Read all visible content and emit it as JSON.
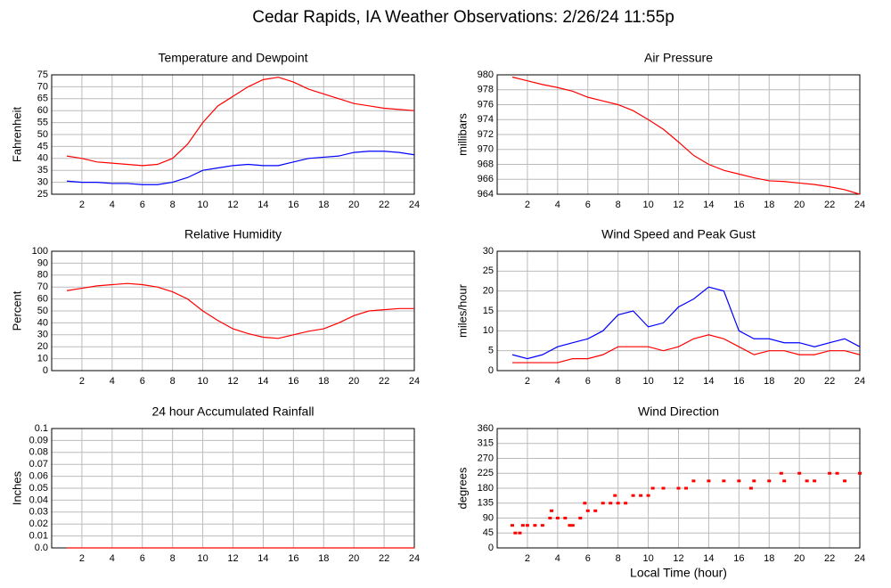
{
  "title": "Cedar Rapids, IA Weather Observations: 2/26/24 11:55p",
  "chart_data": [
    {
      "type": "line",
      "title": "Temperature and Dewpoint",
      "y_label": "Fahrenheit",
      "x": [
        1,
        2,
        3,
        4,
        5,
        6,
        7,
        8,
        9,
        10,
        11,
        12,
        13,
        14,
        15,
        16,
        17,
        18,
        19,
        20,
        21,
        22,
        23,
        24
      ],
      "series": [
        {
          "color": "#ff0000",
          "values": [
            41,
            40,
            38.5,
            38,
            37.5,
            37,
            37.5,
            40,
            46,
            55,
            62,
            66,
            70,
            73,
            74,
            72,
            69,
            67,
            65,
            63,
            62,
            61,
            60.5,
            60
          ]
        },
        {
          "color": "#0000ff",
          "values": [
            30.5,
            30,
            30,
            29.5,
            29.5,
            29,
            29,
            30,
            32,
            35,
            36,
            37,
            37.5,
            37,
            37,
            38.5,
            40,
            40.5,
            41,
            42.5,
            43,
            43,
            42.5,
            41.5
          ]
        }
      ],
      "xlim": [
        0,
        24
      ],
      "xticks": [
        2,
        4,
        6,
        8,
        10,
        12,
        14,
        16,
        18,
        20,
        22,
        24
      ],
      "ylim": [
        25,
        75
      ],
      "yticks": [
        25,
        30,
        35,
        40,
        45,
        50,
        55,
        60,
        65,
        70,
        75
      ],
      "grid": true
    },
    {
      "type": "line",
      "title": "Air Pressure",
      "y_label": "millibars",
      "x": [
        1,
        2,
        3,
        4,
        5,
        6,
        7,
        8,
        9,
        10,
        11,
        12,
        13,
        14,
        15,
        16,
        17,
        18,
        19,
        20,
        21,
        22,
        23,
        24
      ],
      "series": [
        {
          "color": "#ff0000",
          "values": [
            979.7,
            979.2,
            978.7,
            978.3,
            977.8,
            977,
            976.5,
            976,
            975.2,
            974,
            972.7,
            971,
            969.2,
            968,
            967.2,
            966.7,
            966.2,
            965.8,
            965.7,
            965.5,
            965.3,
            965,
            964.6,
            964
          ]
        }
      ],
      "xlim": [
        0,
        24
      ],
      "xticks": [
        2,
        4,
        6,
        8,
        10,
        12,
        14,
        16,
        18,
        20,
        22,
        24
      ],
      "ylim": [
        964,
        980
      ],
      "yticks": [
        964,
        966,
        968,
        970,
        972,
        974,
        976,
        978,
        980
      ],
      "grid": true
    },
    {
      "type": "line",
      "title": "Relative Humidity",
      "y_label": "Percent",
      "x": [
        1,
        2,
        3,
        4,
        5,
        6,
        7,
        8,
        9,
        10,
        11,
        12,
        13,
        14,
        15,
        16,
        17,
        18,
        19,
        20,
        21,
        22,
        23,
        24
      ],
      "series": [
        {
          "color": "#ff0000",
          "values": [
            67,
            69,
            71,
            72,
            73,
            72,
            70,
            66,
            60,
            50,
            42,
            35,
            31,
            28,
            27,
            30,
            33,
            35,
            40,
            46,
            50,
            51,
            52,
            52
          ]
        }
      ],
      "xlim": [
        0,
        24
      ],
      "xticks": [
        2,
        4,
        6,
        8,
        10,
        12,
        14,
        16,
        18,
        20,
        22,
        24
      ],
      "ylim": [
        0,
        100
      ],
      "yticks": [
        0,
        10,
        20,
        30,
        40,
        50,
        60,
        70,
        80,
        90,
        100
      ],
      "grid": true
    },
    {
      "type": "line",
      "title": "Wind Speed and Peak Gust",
      "y_label": "miles/hour",
      "x": [
        1,
        2,
        3,
        4,
        5,
        6,
        7,
        8,
        9,
        10,
        11,
        12,
        13,
        14,
        15,
        16,
        17,
        18,
        19,
        20,
        21,
        22,
        23,
        24
      ],
      "series": [
        {
          "color": "#ff0000",
          "values": [
            2,
            2,
            2,
            2,
            3,
            3,
            4,
            6,
            6,
            6,
            5,
            6,
            8,
            9,
            8,
            6,
            4,
            5,
            5,
            4,
            4,
            5,
            5,
            4
          ]
        },
        {
          "color": "#0000ff",
          "values": [
            4,
            3,
            4,
            6,
            7,
            8,
            10,
            14,
            15,
            11,
            12,
            16,
            18,
            21,
            20,
            10,
            8,
            8,
            7,
            7,
            6,
            7,
            8,
            6
          ]
        }
      ],
      "xlim": [
        0,
        24
      ],
      "xticks": [
        2,
        4,
        6,
        8,
        10,
        12,
        14,
        16,
        18,
        20,
        22,
        24
      ],
      "ylim": [
        0,
        30
      ],
      "yticks": [
        0,
        5,
        10,
        15,
        20,
        25,
        30
      ],
      "grid": true
    },
    {
      "type": "line",
      "title": "24 hour Accumulated Rainfall",
      "y_label": "Inches",
      "x": [
        1,
        2,
        3,
        4,
        5,
        6,
        7,
        8,
        9,
        10,
        11,
        12,
        13,
        14,
        15,
        16,
        17,
        18,
        19,
        20,
        21,
        22,
        23,
        24
      ],
      "series": [
        {
          "color": "#ff0000",
          "values": [
            0,
            0,
            0,
            0,
            0,
            0,
            0,
            0,
            0,
            0,
            0,
            0,
            0,
            0,
            0,
            0,
            0,
            0,
            0,
            0,
            0,
            0,
            0,
            0
          ]
        }
      ],
      "xlim": [
        0,
        24
      ],
      "xticks": [
        2,
        4,
        6,
        8,
        10,
        12,
        14,
        16,
        18,
        20,
        22,
        24
      ],
      "ylim": [
        0,
        0.1
      ],
      "yticks": [
        {
          "value": 0,
          "label": "0.0"
        },
        0.01,
        0.02,
        0.03,
        0.04,
        0.05,
        0.06,
        0.07,
        0.08,
        0.09,
        0.1
      ],
      "grid": true
    },
    {
      "type": "scatter",
      "title": "Wind Direction",
      "y_label": "degrees",
      "x_label": "Local Time (hour)",
      "x": [
        1,
        1.2,
        1.5,
        1.7,
        2,
        2.5,
        3,
        3.5,
        3.6,
        4,
        4.5,
        4.8,
        5,
        5.5,
        5.8,
        6,
        6.5,
        7,
        7.5,
        7.8,
        8,
        8.5,
        9,
        9.5,
        10,
        10.3,
        11,
        12,
        12.5,
        13,
        14,
        15,
        16,
        16.8,
        17,
        18,
        18.8,
        19,
        20,
        20.5,
        21,
        22,
        22.5,
        23,
        24
      ],
      "series": [
        {
          "color": "#ff0000",
          "values": [
            68,
            45,
            45,
            68,
            68,
            68,
            68,
            90,
            112,
            90,
            90,
            68,
            68,
            90,
            135,
            112,
            112,
            135,
            135,
            158,
            135,
            135,
            158,
            158,
            158,
            180,
            180,
            180,
            180,
            202,
            202,
            202,
            202,
            180,
            202,
            202,
            225,
            202,
            225,
            202,
            202,
            225,
            225,
            202,
            225
          ]
        }
      ],
      "xlim": [
        0,
        24
      ],
      "xticks": [
        2,
        4,
        6,
        8,
        10,
        12,
        14,
        16,
        18,
        20,
        22,
        24
      ],
      "ylim": [
        0,
        360
      ],
      "yticks": [
        0,
        45,
        90,
        135,
        180,
        225,
        270,
        315,
        360
      ],
      "grid": true
    }
  ]
}
